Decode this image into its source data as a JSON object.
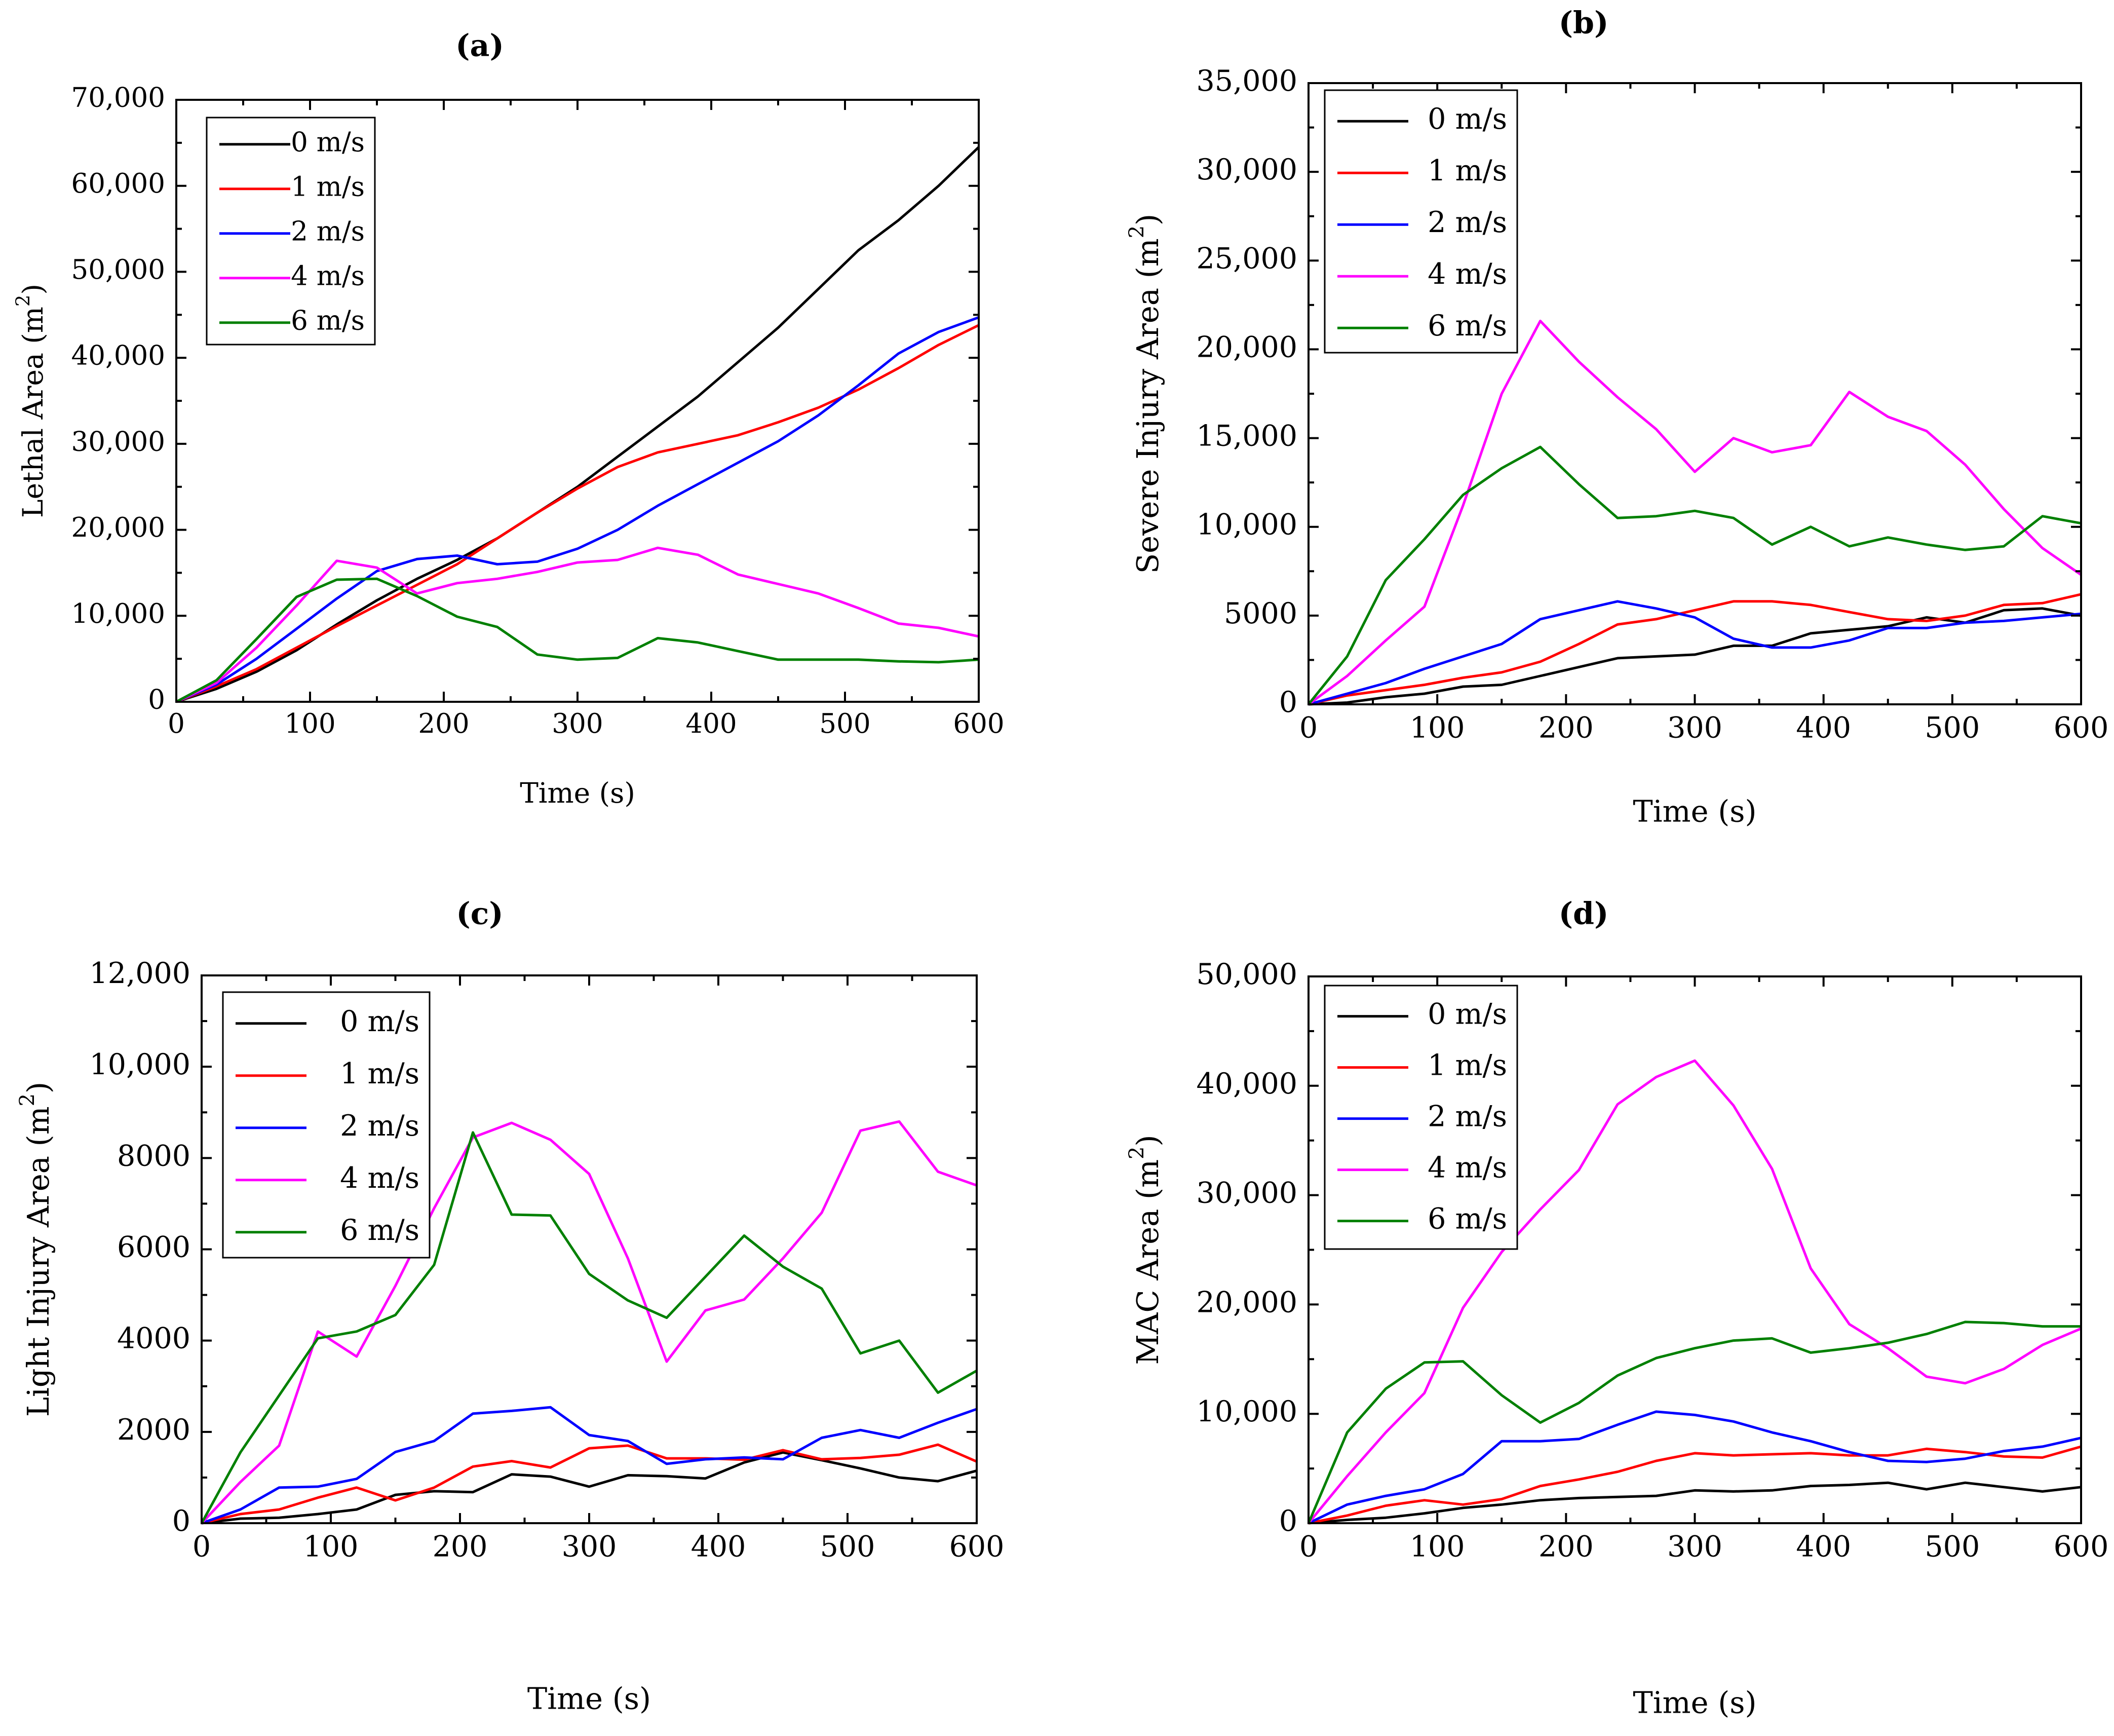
{
  "chart_data": [
    {
      "panel": "(a)",
      "type": "line",
      "title": "(a)",
      "xlabel": "Time (s)",
      "ylabel": "Lethal Area (m",
      "ylabel_sup": "2",
      "ylabel_end": ")",
      "xlim": [
        0,
        600
      ],
      "ylim": [
        0,
        70000
      ],
      "xticks": [
        0,
        100,
        200,
        300,
        400,
        500,
        600
      ],
      "xtick_labels": [
        "0",
        "100",
        "200",
        "300",
        "400",
        "500",
        "600"
      ],
      "yticks": [
        0,
        10000,
        20000,
        30000,
        40000,
        50000,
        60000,
        70000
      ],
      "ytick_labels": [
        "0",
        "10,000",
        "20,000",
        "30,000",
        "40,000",
        "50,000",
        "60,000",
        "70,000"
      ],
      "legend_position": "top-left",
      "x": [
        0,
        30,
        60,
        90,
        120,
        150,
        180,
        210,
        240,
        270,
        300,
        330,
        360,
        390,
        420,
        450,
        480,
        510,
        540,
        570,
        600
      ],
      "series": [
        {
          "name": "0 m/s",
          "color": "#000000",
          "values": [
            0,
            1500,
            3500,
            6000,
            9000,
            11800,
            14300,
            16500,
            19000,
            22000,
            25000,
            28500,
            32000,
            35500,
            39500,
            43500,
            48000,
            52500,
            56000,
            60000,
            64500
          ]
        },
        {
          "name": "1 m/s",
          "color": "#ff0000",
          "values": [
            0,
            1800,
            3800,
            6300,
            8800,
            11200,
            13600,
            16000,
            19000,
            22000,
            24800,
            27300,
            29000,
            30000,
            31000,
            32500,
            34200,
            36300,
            38800,
            41500,
            43800
          ]
        },
        {
          "name": "2 m/s",
          "color": "#0000ff",
          "values": [
            0,
            2000,
            5000,
            8500,
            12000,
            15200,
            16600,
            17000,
            16000,
            16300,
            17800,
            20000,
            22800,
            25300,
            27800,
            30300,
            33300,
            36800,
            40500,
            43000,
            44700
          ]
        },
        {
          "name": "4 m/s",
          "color": "#ff00ff",
          "values": [
            0,
            2200,
            6300,
            11200,
            16400,
            15600,
            12600,
            13800,
            14300,
            15100,
            16200,
            16500,
            17900,
            17100,
            14800,
            13700,
            12600,
            10900,
            9100,
            8600,
            7600
          ]
        },
        {
          "name": "6 m/s",
          "color": "#008000",
          "values": [
            0,
            2500,
            7300,
            12200,
            14200,
            14300,
            12300,
            9900,
            8700,
            5500,
            4900,
            5100,
            7400,
            6900,
            5900,
            4900,
            4900,
            4900,
            4700,
            4600,
            4900
          ]
        }
      ]
    },
    {
      "panel": "(b)",
      "type": "line",
      "title": "(b)",
      "xlabel": "Time (s)",
      "ylabel": "Severe Injury Area (m",
      "ylabel_sup": "2",
      "ylabel_end": ")",
      "xlim": [
        0,
        600
      ],
      "ylim": [
        0,
        35000
      ],
      "xticks": [
        0,
        100,
        200,
        300,
        400,
        500,
        600
      ],
      "xtick_labels": [
        "0",
        "100",
        "200",
        "300",
        "400",
        "500",
        "600"
      ],
      "yticks": [
        0,
        5000,
        10000,
        15000,
        20000,
        25000,
        30000,
        35000
      ],
      "ytick_labels": [
        "0",
        "5000",
        "10,000",
        "15,000",
        "20,000",
        "25,000",
        "30,000",
        "35,000"
      ],
      "legend_position": "top-left",
      "x": [
        0,
        30,
        60,
        90,
        120,
        150,
        180,
        210,
        240,
        270,
        300,
        330,
        360,
        390,
        420,
        450,
        480,
        510,
        540,
        570,
        600
      ],
      "series": [
        {
          "name": "0 m/s",
          "color": "#000000",
          "values": [
            0,
            100,
            400,
            600,
            1000,
            1100,
            1600,
            2100,
            2600,
            2700,
            2800,
            3300,
            3300,
            4000,
            4200,
            4400,
            4900,
            4600,
            5300,
            5400,
            5000
          ]
        },
        {
          "name": "1 m/s",
          "color": "#ff0000",
          "values": [
            0,
            500,
            800,
            1100,
            1500,
            1800,
            2400,
            3400,
            4500,
            4800,
            5300,
            5800,
            5800,
            5600,
            5200,
            4800,
            4700,
            5000,
            5600,
            5700,
            6200
          ]
        },
        {
          "name": "2 m/s",
          "color": "#0000ff",
          "values": [
            0,
            600,
            1200,
            2000,
            2700,
            3400,
            4800,
            5300,
            5800,
            5400,
            4900,
            3700,
            3200,
            3200,
            3600,
            4300,
            4300,
            4600,
            4700,
            4900,
            5100
          ]
        },
        {
          "name": "4 m/s",
          "color": "#ff00ff",
          "values": [
            0,
            1600,
            3600,
            5500,
            11200,
            17500,
            21600,
            19300,
            17300,
            15500,
            13100,
            15000,
            14200,
            14600,
            17600,
            16200,
            15400,
            13500,
            11000,
            8800,
            7300
          ]
        },
        {
          "name": "6 m/s",
          "color": "#008000",
          "values": [
            0,
            2700,
            7000,
            9300,
            11800,
            13300,
            14500,
            12400,
            10500,
            10600,
            10900,
            10500,
            9000,
            10000,
            8900,
            9400,
            9000,
            8700,
            8900,
            10600,
            10200
          ]
        }
      ]
    },
    {
      "panel": "(c)",
      "type": "line",
      "title": "(c)",
      "xlabel": "Time (s)",
      "ylabel": "Light Injury Area (m",
      "ylabel_sup": "2",
      "ylabel_end": ")",
      "xlim": [
        0,
        600
      ],
      "ylim": [
        0,
        12000
      ],
      "xticks": [
        0,
        100,
        200,
        300,
        400,
        500,
        600
      ],
      "xtick_labels": [
        "0",
        "100",
        "200",
        "300",
        "400",
        "500",
        "600"
      ],
      "yticks": [
        0,
        2000,
        4000,
        6000,
        8000,
        10000,
        12000
      ],
      "ytick_labels": [
        "0",
        "2000",
        "4000",
        "6000",
        "8000",
        "10,000",
        "12,000"
      ],
      "legend_position": "top-left",
      "x": [
        0,
        30,
        60,
        90,
        120,
        150,
        180,
        210,
        240,
        270,
        300,
        330,
        360,
        390,
        420,
        450,
        480,
        510,
        540,
        570,
        600
      ],
      "series": [
        {
          "name": "0 m/s",
          "color": "#000000",
          "values": [
            0,
            100,
            120,
            200,
            300,
            620,
            700,
            680,
            1070,
            1020,
            800,
            1050,
            1030,
            980,
            1330,
            1550,
            1380,
            1200,
            1000,
            920,
            1150
          ]
        },
        {
          "name": "1 m/s",
          "color": "#ff0000",
          "values": [
            0,
            200,
            300,
            560,
            780,
            500,
            780,
            1240,
            1360,
            1220,
            1640,
            1700,
            1420,
            1420,
            1390,
            1600,
            1400,
            1430,
            1500,
            1720,
            1350
          ]
        },
        {
          "name": "2 m/s",
          "color": "#0000ff",
          "values": [
            0,
            300,
            780,
            800,
            970,
            1560,
            1800,
            2400,
            2460,
            2540,
            1930,
            1800,
            1300,
            1400,
            1440,
            1400,
            1870,
            2040,
            1870,
            2200,
            2500
          ]
        },
        {
          "name": "4 m/s",
          "color": "#ff00ff",
          "values": [
            0,
            900,
            1700,
            4200,
            3650,
            5200,
            6900,
            8450,
            8770,
            8400,
            7650,
            5800,
            3540,
            4660,
            4900,
            5800,
            6800,
            8600,
            8800,
            7700,
            7400
          ]
        },
        {
          "name": "6 m/s",
          "color": "#008000",
          "values": [
            0,
            1550,
            2800,
            4050,
            4200,
            4560,
            5660,
            8560,
            6760,
            6740,
            5460,
            4880,
            4500,
            5400,
            6300,
            5620,
            5140,
            3720,
            4000,
            2860,
            3340
          ]
        }
      ]
    },
    {
      "panel": "(d)",
      "type": "line",
      "title": "(d)",
      "xlabel": "Time (s)",
      "ylabel": "MAC Area (m",
      "ylabel_sup": "2",
      "ylabel_end": ")",
      "xlim": [
        0,
        600
      ],
      "ylim": [
        0,
        50000
      ],
      "xticks": [
        0,
        100,
        200,
        300,
        400,
        500,
        600
      ],
      "xtick_labels": [
        "0",
        "100",
        "200",
        "300",
        "400",
        "500",
        "600"
      ],
      "yticks": [
        0,
        10000,
        20000,
        30000,
        40000,
        50000
      ],
      "ytick_labels": [
        "0",
        "10,000",
        "20,000",
        "30,000",
        "40,000",
        "50,000"
      ],
      "legend_position": "top-left",
      "x": [
        0,
        30,
        60,
        90,
        120,
        150,
        180,
        210,
        240,
        270,
        300,
        330,
        360,
        390,
        420,
        450,
        480,
        510,
        540,
        570,
        600
      ],
      "series": [
        {
          "name": "0 m/s",
          "color": "#000000",
          "values": [
            0,
            300,
            500,
            900,
            1400,
            1700,
            2100,
            2300,
            2400,
            2500,
            3000,
            2900,
            3000,
            3400,
            3500,
            3700,
            3100,
            3700,
            3300,
            2900,
            3300
          ]
        },
        {
          "name": "1 m/s",
          "color": "#ff0000",
          "values": [
            0,
            700,
            1600,
            2100,
            1700,
            2200,
            3400,
            4000,
            4700,
            5700,
            6400,
            6200,
            6300,
            6400,
            6200,
            6200,
            6800,
            6500,
            6100,
            6000,
            7000
          ]
        },
        {
          "name": "2 m/s",
          "color": "#0000ff",
          "values": [
            0,
            1700,
            2500,
            3100,
            4500,
            7500,
            7500,
            7700,
            9000,
            10200,
            9900,
            9300,
            8300,
            7500,
            6500,
            5700,
            5600,
            5900,
            6600,
            7000,
            7800
          ]
        },
        {
          "name": "4 m/s",
          "color": "#ff00ff",
          "values": [
            0,
            4300,
            8300,
            11900,
            19700,
            24800,
            28700,
            32300,
            38300,
            40800,
            42300,
            38200,
            32400,
            23300,
            18200,
            16000,
            13400,
            12800,
            14100,
            16300,
            17800
          ]
        },
        {
          "name": "6 m/s",
          "color": "#008000",
          "values": [
            0,
            8300,
            12300,
            14700,
            14800,
            11700,
            9200,
            11000,
            13500,
            15100,
            16000,
            16700,
            16900,
            15600,
            16000,
            16500,
            17300,
            18400,
            18300,
            18000,
            18000
          ]
        }
      ]
    }
  ]
}
